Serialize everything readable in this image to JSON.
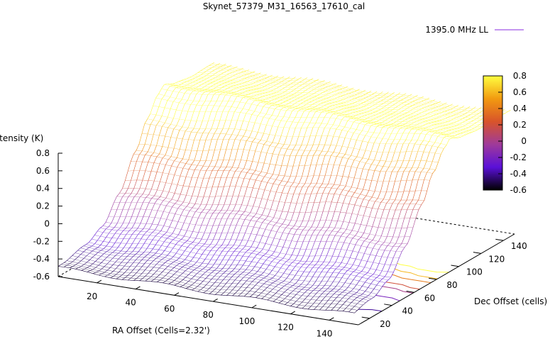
{
  "chart_data": {
    "type": "surface",
    "title": "Skynet_57379_M31_16563_17610_cal",
    "xlabel": "RA Offset (Cells=2.32')",
    "ylabel": "Dec Offset (cells)",
    "zlabel": "Intensity (K)",
    "xlim": [
      0,
      155
    ],
    "ylim": [
      10,
      150
    ],
    "zlim": [
      -0.6,
      0.8
    ],
    "x_ticks": [
      "20",
      "40",
      "60",
      "80",
      "100",
      "120",
      "140"
    ],
    "y_ticks": [
      "20",
      "40",
      "60",
      "80",
      "100",
      "120",
      "140"
    ],
    "z_ticks": [
      "0.8",
      "0.6",
      "0.4",
      "0.2",
      "0",
      "-0.2",
      "-0.4",
      "-0.6"
    ],
    "colorbar_ticks": [
      "0.8",
      "0.6",
      "0.4",
      "0.2",
      "0",
      "-0.2",
      "-0.4",
      "-0.6"
    ],
    "colorbar_range": [
      -0.6,
      0.8
    ],
    "legend": [
      {
        "name": "1395.0 MHz LL",
        "color": "#8a2be2"
      }
    ],
    "legend_position": "top-right",
    "z_profile_by_dec": [
      {
        "dec": 10,
        "z": -0.5
      },
      {
        "dec": 30,
        "z": -0.42
      },
      {
        "dec": 45,
        "z": -0.3
      },
      {
        "dec": 60,
        "z": -0.05
      },
      {
        "dec": 75,
        "z": 0.3
      },
      {
        "dec": 85,
        "z": 0.58
      },
      {
        "dec": 95,
        "z": 0.8
      },
      {
        "dec": 100,
        "z": 0.88
      },
      {
        "dec": 110,
        "z": 0.84
      },
      {
        "dec": 130,
        "z": 0.8
      },
      {
        "dec": 150,
        "z": 0.78
      }
    ],
    "contour_levels": [
      -0.4,
      -0.2,
      0,
      0.2,
      0.4,
      0.6,
      0.8
    ],
    "grid": false
  }
}
